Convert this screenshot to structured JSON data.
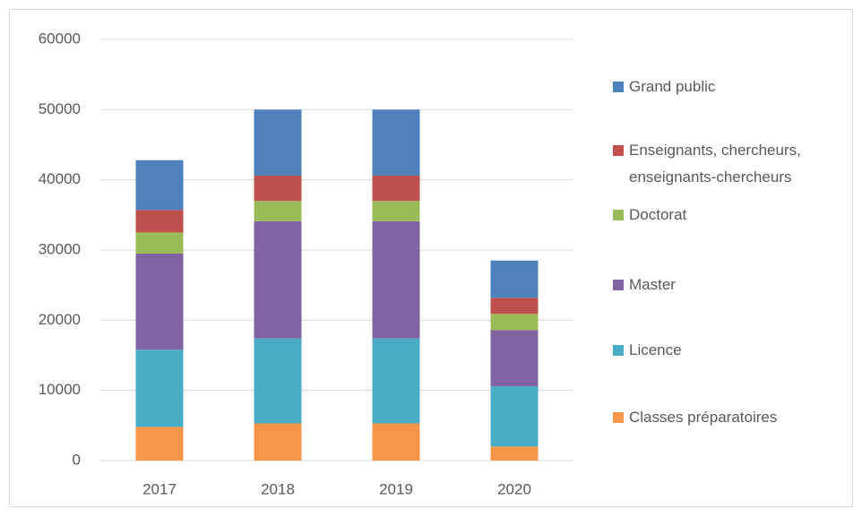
{
  "chart_data": {
    "type": "stacked_bar",
    "categories": [
      "2017",
      "2018",
      "2019",
      "2020"
    ],
    "series": [
      {
        "name": "Classes préparatoires",
        "color": "#f79646",
        "values": [
          4800,
          5300,
          5300,
          2000
        ]
      },
      {
        "name": "Licence",
        "color": "#4bacc6",
        "values": [
          11000,
          12100,
          12100,
          8600
        ]
      },
      {
        "name": "Master",
        "color": "#8064a2",
        "values": [
          13700,
          16700,
          16700,
          8000
        ]
      },
      {
        "name": "Doctorat",
        "color": "#9bbb59",
        "values": [
          3000,
          2900,
          2900,
          2300
        ]
      },
      {
        "name": "Enseignants, chercheurs, enseignants-chercheurs",
        "color": "#c0504d",
        "values": [
          3200,
          3600,
          3600,
          2300
        ]
      },
      {
        "name": "Grand public",
        "color": "#4f81bd",
        "values": [
          7100,
          9400,
          9400,
          5300
        ]
      }
    ],
    "ylim": [
      0,
      60000
    ],
    "yticks": [
      0,
      10000,
      20000,
      30000,
      40000,
      50000,
      60000
    ],
    "grid": true,
    "legend": "right"
  }
}
